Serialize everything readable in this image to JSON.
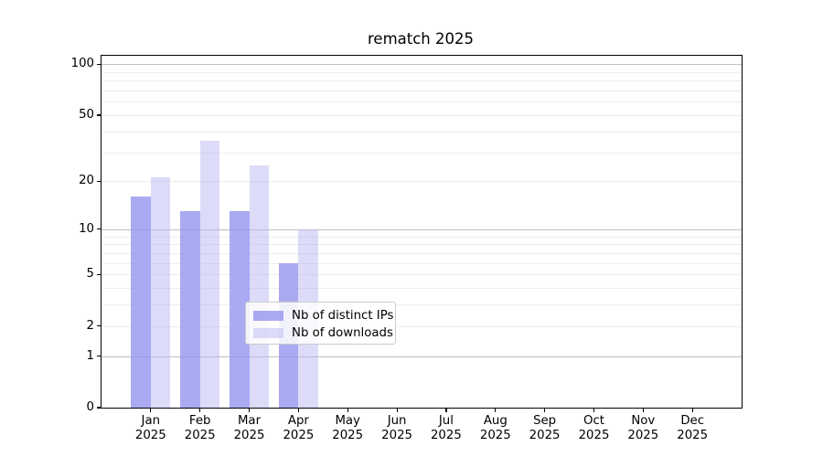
{
  "figure": {
    "background": "#ffffff",
    "spine_color": "#000000",
    "grid_major_color": "#c0c0c0",
    "grid_minor_color": "#ededed"
  },
  "chart_data": {
    "type": "bar",
    "title": "rematch 2025",
    "categories": [
      "Jan",
      "Feb",
      "Mar",
      "Apr",
      "May",
      "Jun",
      "Jul",
      "Aug",
      "Sep",
      "Oct",
      "Nov",
      "Dec"
    ],
    "category_year": "2025",
    "series": [
      {
        "name": "Nb of distinct IPs",
        "color": "rgba(149,149,239,0.8)",
        "values": [
          16,
          13,
          13,
          6,
          0,
          0,
          0,
          0,
          0,
          0,
          0,
          0
        ]
      },
      {
        "name": "Nb of downloads",
        "color": "rgba(177,177,242,0.45)",
        "values": [
          21,
          35,
          25,
          10,
          0,
          0,
          0,
          0,
          0,
          0,
          0,
          0
        ]
      }
    ],
    "y_axis": {
      "scale": "log1p",
      "min": 0,
      "max": 112.3,
      "tick_values": [
        0,
        1,
        2,
        5,
        10,
        20,
        50,
        100
      ],
      "grid_major": [
        1,
        10,
        100
      ],
      "grid_minor": [
        2,
        3,
        4,
        5,
        6,
        7,
        8,
        9,
        20,
        30,
        40,
        50,
        60,
        70,
        80,
        90
      ]
    },
    "legend": {
      "position": "bottom-center",
      "entries": [
        "Nb of distinct IPs",
        "Nb of downloads"
      ]
    },
    "grid": true,
    "bar_width_fraction": 0.4
  }
}
